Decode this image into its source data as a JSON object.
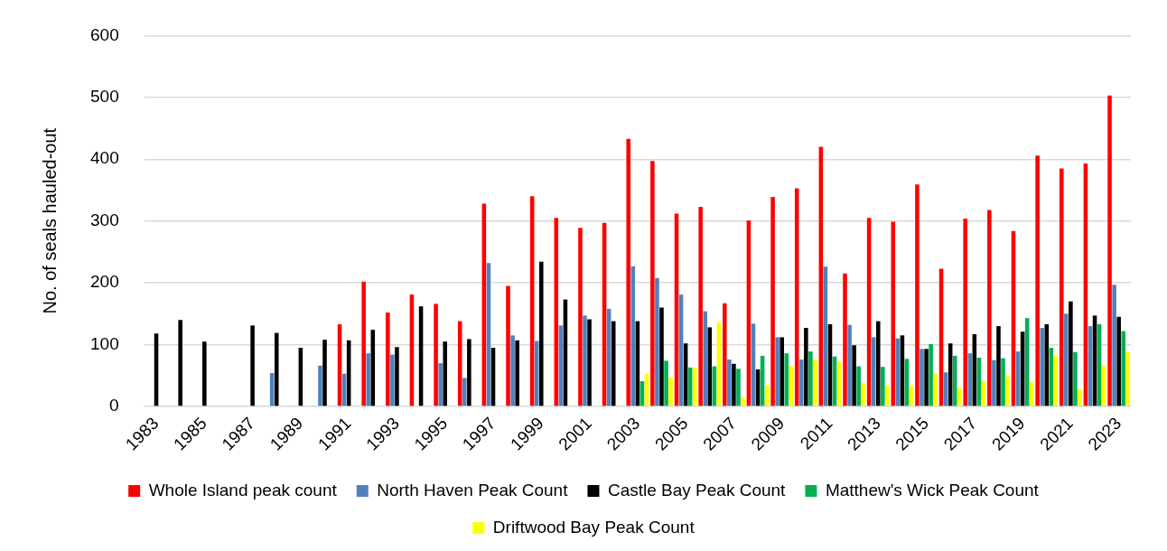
{
  "chart_data": {
    "type": "bar",
    "ylabel": "No. of seals hauled-out",
    "categories": [
      "1983",
      null,
      "1985",
      null,
      "1987",
      null,
      "1989",
      null,
      "1991",
      null,
      "1993",
      null,
      "1995",
      null,
      "1997",
      null,
      "1999",
      null,
      "2001",
      null,
      "2003",
      null,
      "2005",
      null,
      "2007",
      null,
      "2009",
      null,
      "2011",
      null,
      "2013",
      null,
      "2015",
      null,
      "2017",
      null,
      "2019",
      null,
      "2021",
      null,
      "2023"
    ],
    "series": [
      {
        "name": "Whole Island peak count",
        "color": "#ff0000",
        "values": [
          null,
          null,
          null,
          null,
          null,
          null,
          null,
          null,
          133,
          202,
          152,
          181,
          166,
          138,
          328,
          195,
          340,
          305,
          289,
          297,
          433,
          397,
          312,
          323,
          167,
          301,
          339,
          353,
          420,
          215,
          305,
          299,
          359,
          223,
          304,
          318,
          284,
          406,
          385,
          393,
          503
        ]
      },
      {
        "name": "North Haven Peak Count",
        "color": "#4f81bd",
        "values": [
          null,
          null,
          null,
          null,
          null,
          54,
          null,
          66,
          53,
          86,
          84,
          null,
          70,
          46,
          232,
          115,
          106,
          131,
          147,
          158,
          227,
          208,
          181,
          154,
          76,
          134,
          112,
          76,
          226,
          132,
          112,
          110,
          93,
          55,
          86,
          75,
          89,
          127,
          150,
          130,
          197
        ]
      },
      {
        "name": "Castle Bay Peak Count",
        "color": "#000000",
        "values": [
          118,
          140,
          105,
          null,
          131,
          119,
          95,
          108,
          107,
          124,
          96,
          162,
          105,
          109,
          95,
          107,
          234,
          173,
          141,
          138,
          138,
          160,
          102,
          128,
          69,
          60,
          112,
          127,
          133,
          99,
          138,
          115,
          93,
          102,
          117,
          130,
          121,
          133,
          170,
          147,
          145
        ]
      },
      {
        "name": "Matthew's Wick Peak Count",
        "color": "#00b050",
        "values": [
          null,
          null,
          null,
          null,
          null,
          null,
          null,
          null,
          null,
          null,
          null,
          null,
          null,
          null,
          null,
          null,
          null,
          null,
          null,
          null,
          41,
          74,
          63,
          65,
          61,
          82,
          86,
          89,
          81,
          65,
          64,
          77,
          101,
          82,
          79,
          78,
          143,
          95,
          88,
          133,
          122
        ]
      },
      {
        "name": "Driftwood Bay Peak Count",
        "color": "#ffff00",
        "values": [
          null,
          null,
          null,
          null,
          null,
          null,
          null,
          null,
          null,
          null,
          null,
          null,
          null,
          null,
          null,
          null,
          null,
          null,
          null,
          null,
          53,
          47,
          63,
          136,
          14,
          34,
          65,
          76,
          73,
          38,
          34,
          33,
          53,
          30,
          41,
          50,
          39,
          82,
          28,
          66,
          88
        ]
      }
    ],
    "ylim": [
      0,
      600
    ],
    "yticks": [
      0,
      100,
      200,
      300,
      400,
      500,
      600
    ],
    "grid": "y",
    "legend": "bottom"
  }
}
